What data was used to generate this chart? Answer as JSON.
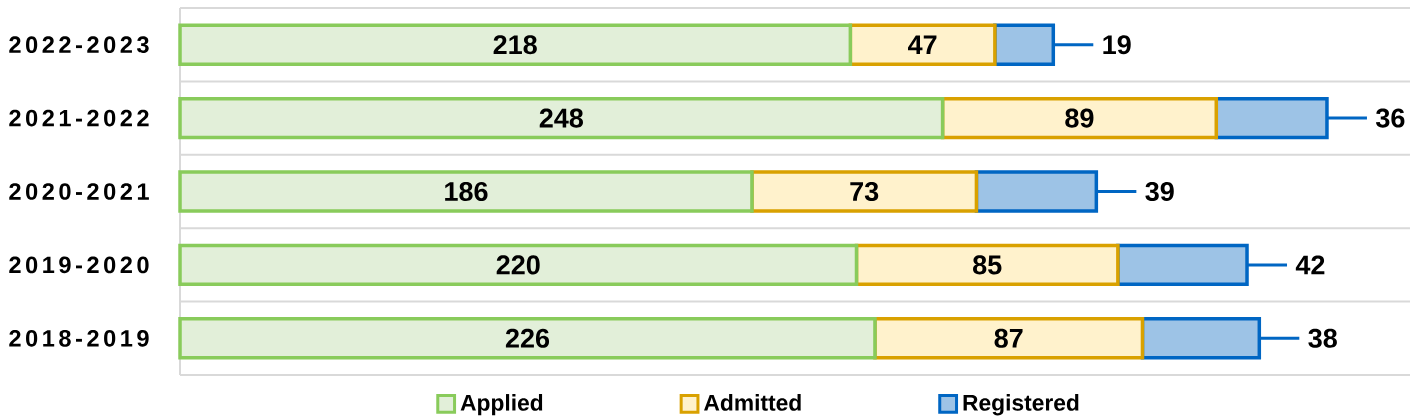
{
  "chart_data": {
    "type": "bar",
    "orientation": "horizontal",
    "stacked": true,
    "categories": [
      "2022-2023",
      "2021-2022",
      "2020-2021",
      "2019-2020",
      "2018-2019"
    ],
    "series": [
      {
        "name": "Applied",
        "color": "#e2efd9",
        "values": [
          218,
          248,
          186,
          220,
          226
        ]
      },
      {
        "name": "Admitted",
        "color": "#fff2cc",
        "values": [
          47,
          89,
          73,
          85,
          87
        ]
      },
      {
        "name": "Registered",
        "color": "#9dc3e6",
        "values": [
          19,
          36,
          39,
          42,
          38
        ]
      }
    ],
    "xlim": [
      0,
      400
    ],
    "data_labels": true,
    "grid": "y",
    "legend": "bottom",
    "tick_labels": "y"
  }
}
